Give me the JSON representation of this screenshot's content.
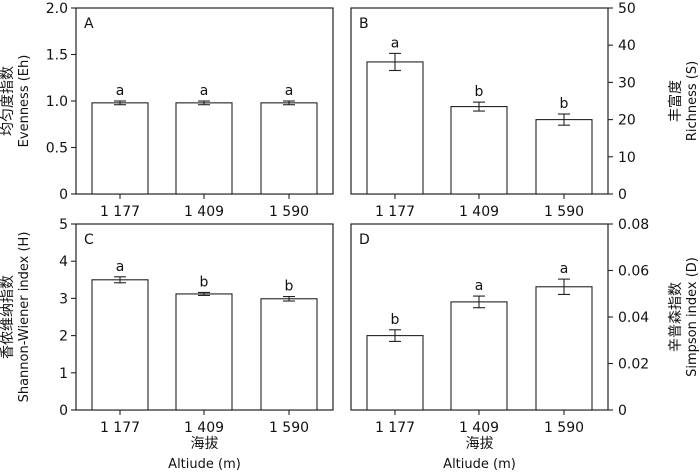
{
  "chart_data": [
    {
      "type": "bar",
      "panel": "A",
      "categories": [
        "1 177",
        "1 409",
        "1 590"
      ],
      "values": [
        0.98,
        0.98,
        0.98
      ],
      "errors": [
        0.02,
        0.02,
        0.02
      ],
      "significance": [
        "a",
        "a",
        "a"
      ],
      "ylabel_cn": "均匀度指数",
      "ylabel_en": "Evenness (Eh)",
      "ylim": [
        0,
        2.0
      ],
      "yticks": [
        "0",
        "0.5",
        "1.0",
        "1.5",
        "2.0"
      ],
      "axis_side": "left"
    },
    {
      "type": "bar",
      "panel": "B",
      "categories": [
        "1 177",
        "1 409",
        "1 590"
      ],
      "values": [
        35.5,
        23.5,
        20.0
      ],
      "errors": [
        2.3,
        1.2,
        1.5
      ],
      "significance": [
        "a",
        "b",
        "b"
      ],
      "ylabel_cn": "丰富度",
      "ylabel_en": "Richness (S)",
      "ylim": [
        0,
        50
      ],
      "yticks": [
        "0",
        "10",
        "20",
        "30",
        "40",
        "50"
      ],
      "axis_side": "right"
    },
    {
      "type": "bar",
      "panel": "C",
      "categories": [
        "1 177",
        "1 409",
        "1 590"
      ],
      "values": [
        3.5,
        3.12,
        2.99
      ],
      "errors": [
        0.08,
        0.04,
        0.06
      ],
      "significance": [
        "a",
        "b",
        "b"
      ],
      "ylabel_cn": "香侬维纳指数",
      "ylabel_en": "Shannon-Wiener index (H)",
      "ylim": [
        0,
        5
      ],
      "yticks": [
        "0",
        "1",
        "2",
        "3",
        "4",
        "5"
      ],
      "axis_side": "left"
    },
    {
      "type": "bar",
      "panel": "D",
      "categories": [
        "1 177",
        "1 409",
        "1 590"
      ],
      "values": [
        0.032,
        0.0465,
        0.053
      ],
      "errors": [
        0.0025,
        0.0025,
        0.0033
      ],
      "significance": [
        "b",
        "a",
        "a"
      ],
      "ylabel_cn": "辛普森指数",
      "ylabel_en": "Simpson index (D)",
      "ylim": [
        0,
        0.08
      ],
      "yticks": [
        "0",
        "0.02",
        "0.04",
        "0.06",
        "0.08"
      ],
      "axis_side": "right"
    }
  ],
  "xlabel_cn": "海拔",
  "xlabel_en": "Altiude (m)"
}
